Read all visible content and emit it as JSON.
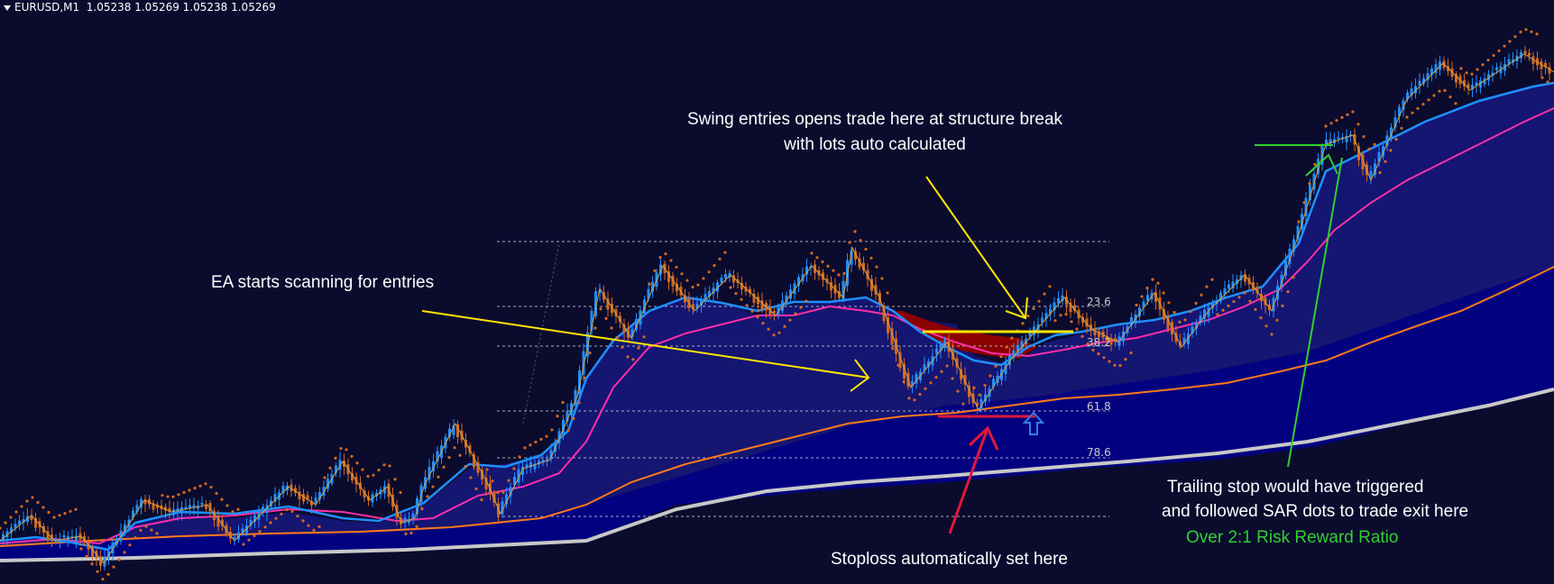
{
  "header": {
    "symbol_timeframe": "EURUSD,M1",
    "ohlc": "1.05238 1.05269 1.05238 1.05269"
  },
  "colors": {
    "background": "#0b0b2e",
    "bull_candle": "#1e90ff",
    "bear_candle": "#d2691e",
    "fast_ma": "#1e90ff",
    "mid_ma": "#ff2fa8",
    "slow_ma": "#ff7a1a",
    "long_ma": "#c8c8c8",
    "cloud_bull": "#00008b",
    "cloud_bear": "#8b0000",
    "sar_dots": "#d2691e",
    "fib_lines": "#c8c8c8",
    "annotation_yellow": "#ffe600",
    "annotation_red": "#e0173c",
    "annotation_green": "#2fd02f"
  },
  "fib_levels": [
    "23.6",
    "38.2",
    "61.8",
    "78.6"
  ],
  "annotations": {
    "scan": "EA starts scanning for entries",
    "entry_line1": "Swing entries opens trade here at structure break",
    "entry_line2": "with lots auto calculated",
    "stoploss": "Stoploss automatically set here",
    "trailing_line1": "Trailing stop would have triggered",
    "trailing_line2": "and followed SAR dots to trade exit here",
    "rr": "Over 2:1 Risk Reward Ratio"
  },
  "icons": {
    "signal": "up-arrow-icon"
  }
}
